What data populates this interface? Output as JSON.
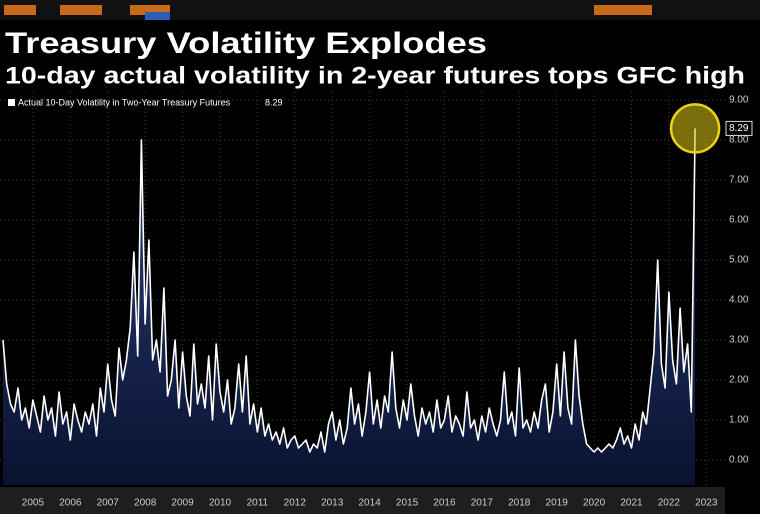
{
  "chart_data": {
    "type": "area",
    "title": "Treasury Volatility Explodes",
    "subtitle": "10-day actual volatility in 2-year futures tops GFC high",
    "x": [
      2004.7,
      2004.8,
      2004.9,
      2005.0,
      2005.1,
      2005.2,
      2005.3,
      2005.4,
      2005.5,
      2005.6,
      2005.7,
      2005.8,
      2005.9,
      2006.0,
      2006.1,
      2006.2,
      2006.3,
      2006.4,
      2006.5,
      2006.6,
      2006.7,
      2006.8,
      2006.9,
      2007.0,
      2007.1,
      2007.2,
      2007.3,
      2007.4,
      2007.5,
      2007.6,
      2007.7,
      2007.8,
      2007.9,
      2008.0,
      2008.1,
      2008.2,
      2008.3,
      2008.4,
      2008.5,
      2008.6,
      2008.7,
      2008.8,
      2008.9,
      2009.0,
      2009.1,
      2009.2,
      2009.3,
      2009.4,
      2009.5,
      2009.6,
      2009.7,
      2009.8,
      2009.9,
      2010.0,
      2010.1,
      2010.2,
      2010.3,
      2010.4,
      2010.5,
      2010.6,
      2010.7,
      2010.8,
      2010.9,
      2011.0,
      2011.1,
      2011.2,
      2011.3,
      2011.4,
      2011.5,
      2011.6,
      2011.7,
      2011.8,
      2011.9,
      2012.0,
      2012.1,
      2012.2,
      2012.3,
      2012.4,
      2012.5,
      2012.6,
      2012.7,
      2012.8,
      2012.9,
      2013.0,
      2013.1,
      2013.2,
      2013.3,
      2013.4,
      2013.5,
      2013.6,
      2013.7,
      2013.8,
      2013.9,
      2014.0,
      2014.1,
      2014.2,
      2014.3,
      2014.4,
      2014.5,
      2014.6,
      2014.7,
      2014.8,
      2014.9,
      2015.0,
      2015.1,
      2015.2,
      2015.3,
      2015.4,
      2015.5,
      2015.6,
      2015.7,
      2015.8,
      2015.9,
      2016.0,
      2016.1,
      2016.2,
      2016.3,
      2016.4,
      2016.5,
      2016.6,
      2016.7,
      2016.8,
      2016.9,
      2017.0,
      2017.1,
      2017.2,
      2017.3,
      2017.4,
      2017.5,
      2017.6,
      2017.7,
      2017.8,
      2017.9,
      2018.0,
      2018.1,
      2018.2,
      2018.3,
      2018.4,
      2018.5,
      2018.6,
      2018.7,
      2018.8,
      2018.9,
      2019.0,
      2019.1,
      2019.2,
      2019.3,
      2019.4,
      2019.5,
      2019.6,
      2019.7,
      2019.8,
      2019.9,
      2020.0,
      2020.1,
      2020.2,
      2020.3,
      2020.4,
      2020.5,
      2020.6,
      2020.7,
      2020.8,
      2020.9,
      2021.0,
      2021.1,
      2021.2,
      2021.3,
      2021.4,
      2021.5,
      2021.6,
      2021.7,
      2021.8,
      2021.9,
      2022.0,
      2022.1,
      2022.2,
      2022.3,
      2022.4,
      2022.5,
      2022.6,
      2022.7,
      2022.8,
      2022.9,
      2023.0,
      2023.1,
      2023.2
    ],
    "series": [
      {
        "name": "Actual 10-Day Volatility in Two-Year Treasury Futures",
        "color": "#ffffff",
        "fill": "#1a2a5a",
        "values": [
          3.0,
          1.9,
          1.4,
          1.2,
          1.8,
          1.0,
          1.3,
          0.8,
          1.5,
          1.1,
          0.7,
          1.6,
          1.0,
          1.3,
          0.6,
          1.7,
          0.9,
          1.2,
          0.5,
          1.4,
          1.0,
          0.7,
          1.2,
          0.9,
          1.4,
          0.6,
          1.8,
          1.2,
          2.4,
          1.5,
          1.1,
          2.8,
          2.0,
          2.5,
          3.3,
          5.2,
          2.6,
          8.0,
          3.4,
          5.5,
          2.5,
          3.0,
          2.2,
          4.3,
          1.6,
          2.0,
          3.0,
          1.3,
          2.7,
          1.6,
          1.1,
          2.9,
          1.4,
          1.9,
          1.3,
          2.6,
          1.0,
          2.9,
          1.7,
          1.2,
          2.0,
          0.9,
          1.3,
          2.4,
          1.2,
          2.6,
          0.9,
          1.4,
          0.7,
          1.3,
          0.6,
          0.9,
          0.5,
          0.7,
          0.4,
          0.8,
          0.3,
          0.5,
          0.6,
          0.3,
          0.4,
          0.5,
          0.2,
          0.4,
          0.3,
          0.7,
          0.2,
          0.9,
          1.2,
          0.5,
          1.0,
          0.4,
          0.8,
          1.8,
          0.9,
          1.4,
          0.6,
          1.2,
          2.2,
          0.9,
          1.5,
          0.8,
          1.6,
          1.2,
          2.7,
          1.3,
          0.8,
          1.5,
          1.0,
          1.9,
          1.1,
          0.6,
          1.3,
          0.9,
          1.2,
          0.7,
          1.5,
          0.8,
          1.0,
          1.6,
          0.7,
          1.1,
          0.9,
          0.6,
          1.7,
          0.8,
          1.0,
          0.5,
          1.1,
          0.7,
          1.3,
          0.9,
          0.6,
          1.0,
          2.2,
          0.9,
          1.2,
          0.6,
          2.3,
          0.8,
          1.0,
          0.7,
          1.2,
          0.8,
          1.5,
          1.9,
          0.7,
          1.2,
          2.4,
          1.1,
          2.7,
          1.3,
          0.9,
          3.0,
          1.6,
          0.9,
          0.4,
          0.3,
          0.2,
          0.3,
          0.2,
          0.3,
          0.4,
          0.3,
          0.5,
          0.8,
          0.4,
          0.6,
          0.3,
          0.9,
          0.5,
          1.2,
          0.9,
          1.8,
          2.7,
          5.0,
          2.4,
          1.8,
          4.2,
          2.5,
          1.9,
          3.8,
          2.2,
          2.9,
          1.2,
          8.29
        ]
      }
    ],
    "xlim": [
      2004.62,
      2024.0
    ],
    "xticks": [
      {
        "value": 2005.5,
        "label": "2005"
      },
      {
        "value": 2006.5,
        "label": "2006"
      },
      {
        "value": 2007.5,
        "label": "2007"
      },
      {
        "value": 2008.5,
        "label": "2008"
      },
      {
        "value": 2009.5,
        "label": "2009"
      },
      {
        "value": 2010.5,
        "label": "2010"
      },
      {
        "value": 2011.5,
        "label": "2011"
      },
      {
        "value": 2012.5,
        "label": "2012"
      },
      {
        "value": 2013.5,
        "label": "2013"
      },
      {
        "value": 2014.5,
        "label": "2014"
      },
      {
        "value": 2015.5,
        "label": "2015"
      },
      {
        "value": 2016.5,
        "label": "2016"
      },
      {
        "value": 2017.5,
        "label": "2017"
      },
      {
        "value": 2018.5,
        "label": "2018"
      },
      {
        "value": 2019.5,
        "label": "2019"
      },
      {
        "value": 2020.5,
        "label": "2020"
      },
      {
        "value": 2021.5,
        "label": "2021"
      },
      {
        "value": 2022.5,
        "label": "2022"
      },
      {
        "value": 2023.5,
        "label": "2023"
      }
    ],
    "ylim": [
      -0.625,
      9.2
    ],
    "yticks": [
      {
        "value": 0,
        "label": "0.00"
      },
      {
        "value": 1,
        "label": "1.00"
      },
      {
        "value": 2,
        "label": "2.00"
      },
      {
        "value": 3,
        "label": "3.00"
      },
      {
        "value": 4,
        "label": "4.00"
      },
      {
        "value": 5,
        "label": "5.00"
      },
      {
        "value": 6,
        "label": "6.00"
      },
      {
        "value": 7,
        "label": "7.00"
      },
      {
        "value": 8,
        "label": "8.00"
      },
      {
        "value": 9,
        "label": "9.00"
      }
    ],
    "grid": true
  }
}
